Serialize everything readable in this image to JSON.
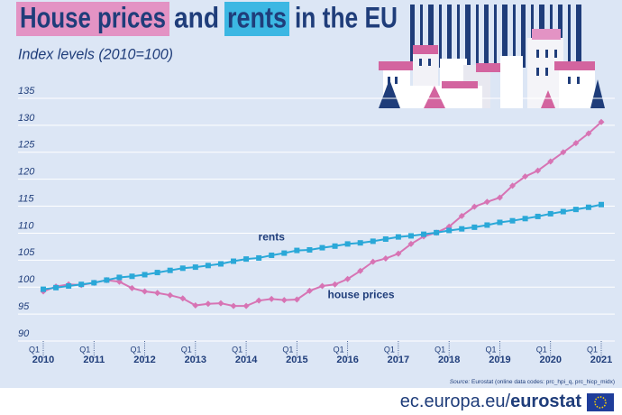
{
  "chart_data": {
    "type": "line",
    "title_segments": [
      "House prices",
      "and",
      "rents",
      "in the EU"
    ],
    "subtitle": "Index levels (2010=100)",
    "quarter_label": "Q1",
    "categories": [
      "2010",
      null,
      null,
      null,
      "2011",
      null,
      null,
      null,
      "2012",
      null,
      null,
      null,
      "2013",
      null,
      null,
      null,
      "2014",
      null,
      null,
      null,
      "2015",
      null,
      null,
      null,
      "2016",
      null,
      null,
      null,
      "2017",
      null,
      null,
      null,
      "2018",
      null,
      null,
      null,
      "2019",
      null,
      null,
      null,
      "2020",
      null,
      null,
      null,
      "2021"
    ],
    "series": [
      {
        "name": "house prices",
        "color": "#d774b4",
        "marker": "diamond",
        "values": [
          99.2,
          100.1,
          100.5,
          100.4,
          100.8,
          101.3,
          101.0,
          99.8,
          99.2,
          98.9,
          98.5,
          97.9,
          96.6,
          96.9,
          97.0,
          96.5,
          96.5,
          97.5,
          97.8,
          97.6,
          97.7,
          99.3,
          100.2,
          100.5,
          101.5,
          103.0,
          104.7,
          105.3,
          106.2,
          108.0,
          109.4,
          110.1,
          111.2,
          113.2,
          114.9,
          115.8,
          116.6,
          118.8,
          120.5,
          121.6,
          123.3,
          125.0,
          126.7,
          128.5,
          130.6
        ]
      },
      {
        "name": "rents",
        "color": "#2aa8d8",
        "marker": "square",
        "values": [
          99.6,
          99.9,
          100.2,
          100.5,
          100.8,
          101.3,
          101.8,
          102.0,
          102.3,
          102.7,
          103.1,
          103.5,
          103.7,
          104.0,
          104.3,
          104.8,
          105.2,
          105.4,
          105.9,
          106.3,
          106.8,
          106.9,
          107.3,
          107.6,
          108.0,
          108.2,
          108.5,
          108.9,
          109.3,
          109.5,
          109.8,
          110.1,
          110.5,
          110.8,
          111.1,
          111.5,
          112.0,
          112.3,
          112.7,
          113.1,
          113.6,
          114.0,
          114.4,
          114.8,
          115.3
        ]
      }
    ],
    "ylim": [
      90,
      135
    ],
    "yticks": [
      90,
      95,
      100,
      105,
      110,
      115,
      120,
      125,
      130,
      135
    ],
    "grid": true,
    "source_segments": [
      "Source:",
      "Eurostat (online data codes: prc_hpi_q, prc_hicp_midx)"
    ],
    "footer_segments": [
      "ec.europa.eu/",
      "eurostat"
    ]
  }
}
